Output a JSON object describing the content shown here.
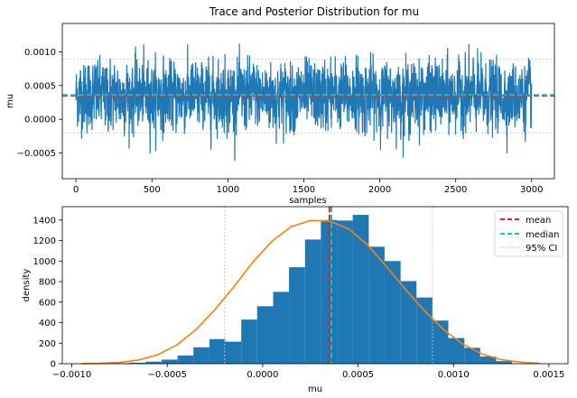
{
  "chart_data": [
    {
      "type": "line",
      "title": "Trace and Posterior Distribution for mu",
      "xlabel": "samples",
      "ylabel": "mu",
      "xlim": [
        -90,
        3150
      ],
      "ylim": [
        -0.00088,
        0.00142
      ],
      "xticks": [
        0,
        500,
        1000,
        1500,
        2000,
        2500,
        3000
      ],
      "xtick_labels": [
        "0",
        "500",
        "1000",
        "1500",
        "2000",
        "2500",
        "3000"
      ],
      "yticks": [
        -0.0005,
        0.0,
        0.0005,
        0.001
      ],
      "ytick_labels": [
        "−0.0005",
        "0.0000",
        "0.0005",
        "0.0010"
      ],
      "series": [
        {
          "trace": {
            "n_samples": 3000,
            "center": 0.00035,
            "spread": 0.00025,
            "min": -0.00078,
            "max": 0.00131
          },
          "color": "#1f77b4"
        }
      ],
      "reference_lines": [
        {
          "kind": "mean",
          "value": 0.00035,
          "color": "#d62728",
          "style": "dashed"
        },
        {
          "kind": "median",
          "value": 0.00036,
          "color": "#17becf",
          "style": "dashed"
        },
        {
          "kind": "95% CI lower",
          "value": -0.0002,
          "color": "#c0c0c0",
          "style": "dotted"
        },
        {
          "kind": "95% CI upper",
          "value": 0.00089,
          "color": "#c0c0c0",
          "style": "dotted"
        }
      ],
      "grid": false
    },
    {
      "type": "bar",
      "xlabel": "mu",
      "ylabel": "density",
      "xlim": [
        -0.00105,
        0.0016
      ],
      "ylim": [
        0,
        1530
      ],
      "xticks": [
        -0.001,
        -0.0005,
        0.0,
        0.0005,
        0.001,
        0.0015
      ],
      "xtick_labels": [
        "−0.0010",
        "−0.0005",
        "0.0000",
        "0.0005",
        "0.0010",
        "0.0015"
      ],
      "yticks": [
        0,
        200,
        400,
        600,
        800,
        1000,
        1200,
        1400
      ],
      "ytick_labels": [
        "0",
        "200",
        "400",
        "600",
        "800",
        "1000",
        "1200",
        "1400"
      ],
      "histogram": {
        "bin_edges": [
          -0.00078,
          -0.000697,
          -0.000613,
          -0.00053,
          -0.000446,
          -0.000363,
          -0.000279,
          -0.000196,
          -0.000112,
          -2.9e-05,
          5.5e-05,
          0.000138,
          0.000222,
          0.000305,
          0.000389,
          0.000472,
          0.000556,
          0.000639,
          0.000723,
          0.000806,
          0.00089,
          0.000973,
          0.001057,
          0.00114,
          0.001224,
          0.001307
        ],
        "heights": [
          5,
          10,
          20,
          40,
          80,
          160,
          240,
          215,
          430,
          560,
          700,
          940,
          1210,
          1400,
          1395,
          1450,
          1140,
          1000,
          805,
          645,
          420,
          250,
          155,
          70,
          25
        ],
        "color": "#1f77b4"
      },
      "kde": {
        "x": [
          -0.00095,
          -0.00085,
          -0.00075,
          -0.00065,
          -0.00055,
          -0.00045,
          -0.00035,
          -0.00025,
          -0.00015,
          -5e-05,
          5e-05,
          0.00015,
          0.00025,
          0.00035,
          0.00045,
          0.00055,
          0.00065,
          0.00075,
          0.00085,
          0.00095,
          0.00105,
          0.00115,
          0.00125,
          0.00135,
          0.00145
        ],
        "y": [
          1,
          4,
          13,
          36,
          87,
          182,
          332,
          527,
          752,
          993,
          1196,
          1336,
          1395,
          1390,
          1315,
          1158,
          944,
          721,
          512,
          330,
          190,
          94,
          40,
          15,
          5
        ],
        "color": "#ff7f0e"
      },
      "reference_lines": [
        {
          "kind": "mean",
          "value": 0.00035,
          "color": "#d62728",
          "style": "dashed"
        },
        {
          "kind": "median",
          "value": 0.00036,
          "color": "#17becf",
          "style": "dashed"
        },
        {
          "kind": "95% CI lower",
          "value": -0.0002,
          "color": "#c0c0c0",
          "style": "dotted"
        },
        {
          "kind": "95% CI upper",
          "value": 0.00089,
          "color": "#c0c0c0",
          "style": "dotted"
        }
      ],
      "legend": {
        "placement": "top-right",
        "entries": [
          {
            "label": "mean",
            "color": "#d62728",
            "style": "dashed"
          },
          {
            "label": "median",
            "color": "#17becf",
            "style": "dashed"
          },
          {
            "label": "95% CI",
            "color": "#c0c0c0",
            "style": "dotted"
          }
        ]
      },
      "grid": false
    }
  ]
}
